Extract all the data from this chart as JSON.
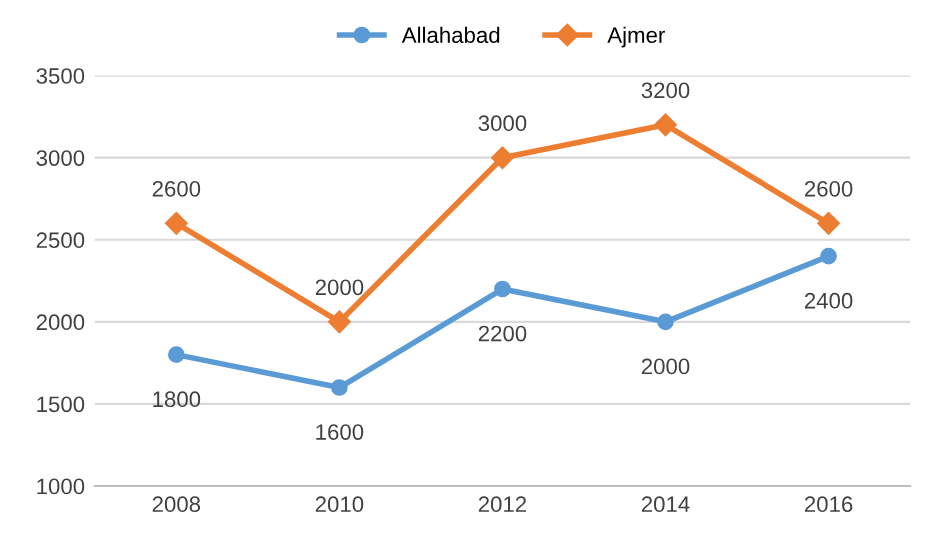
{
  "chart_data": {
    "type": "line",
    "categories": [
      "2008",
      "2010",
      "2012",
      "2014",
      "2016"
    ],
    "series": [
      {
        "name": "Allahabad",
        "color": "#5b9bd5",
        "marker": "circle",
        "values": [
          1800,
          1600,
          2200,
          2000,
          2400
        ]
      },
      {
        "name": "Ajmer",
        "color": "#ed7d31",
        "marker": "diamond",
        "values": [
          2600,
          2000,
          3000,
          3200,
          2600
        ]
      }
    ],
    "ylim": [
      1000,
      3500
    ],
    "yticks": [
      1000,
      1500,
      2000,
      2500,
      3000,
      3500
    ],
    "grid": "y",
    "legend": "top",
    "data_labels": true
  }
}
